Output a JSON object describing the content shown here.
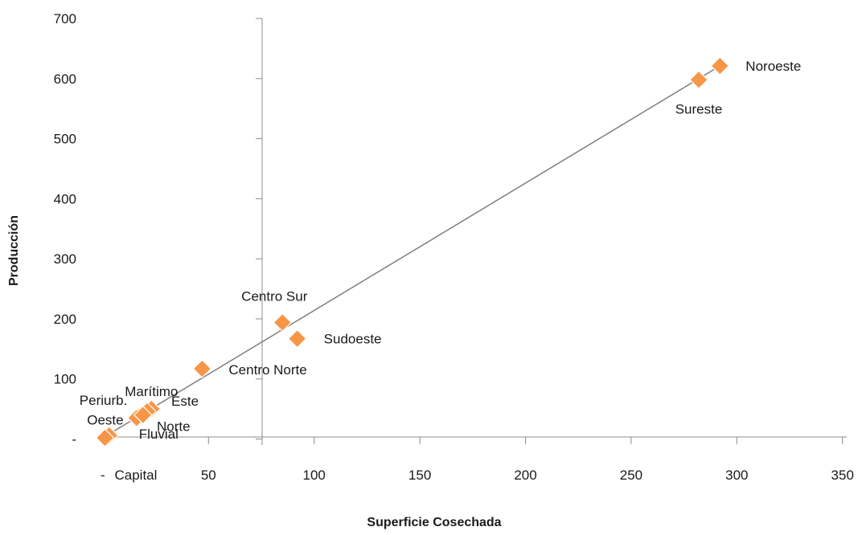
{
  "chart_data": {
    "type": "scatter",
    "title": "",
    "xlabel": "Superficie Cosechada",
    "ylabel": "Producción",
    "xlim": [
      -3,
      352
    ],
    "ylim": [
      -10,
      700
    ],
    "x_ticks": [
      {
        "value": 0,
        "label": "-"
      },
      {
        "value": 50,
        "label": "50"
      },
      {
        "value": 100,
        "label": "100"
      },
      {
        "value": 150,
        "label": "150"
      },
      {
        "value": 200,
        "label": "200"
      },
      {
        "value": 250,
        "label": "250"
      },
      {
        "value": 300,
        "label": "300"
      },
      {
        "value": 350,
        "label": "350"
      }
    ],
    "y_ticks": [
      {
        "value": 0,
        "label": "-"
      },
      {
        "value": 100,
        "label": "100"
      },
      {
        "value": 200,
        "label": "200"
      },
      {
        "value": 300,
        "label": "300"
      },
      {
        "value": 400,
        "label": "400"
      },
      {
        "value": 500,
        "label": "500"
      },
      {
        "value": 600,
        "label": "600"
      },
      {
        "value": 700,
        "label": "700"
      }
    ],
    "grid": false,
    "legend": "none",
    "marker_color": "#F79646",
    "trendline_color": "#7F7F7F",
    "trendline": {
      "type": "linear",
      "x": [
        0,
        292
      ],
      "y": [
        2,
        621
      ]
    },
    "points": [
      {
        "label": "Noroeste",
        "x": 292,
        "y": 621
      },
      {
        "label": "Sureste",
        "x": 282,
        "y": 598
      },
      {
        "label": "Centro Sur",
        "x": 85,
        "y": 194
      },
      {
        "label": "Sudoeste",
        "x": 92,
        "y": 167
      },
      {
        "label": "Centro Norte",
        "x": 47,
        "y": 117
      },
      {
        "label": "Marítimo",
        "x": 23,
        "y": 50
      },
      {
        "label": "Este",
        "x": 21,
        "y": 46
      },
      {
        "label": "Periurb.",
        "x": 17,
        "y": 37
      },
      {
        "label": "Oeste",
        "x": 16,
        "y": 35
      },
      {
        "label": "Norte",
        "x": 19,
        "y": 40
      },
      {
        "label": "Fluvial",
        "x": 3,
        "y": 6
      },
      {
        "label": "Capital",
        "x": 1,
        "y": 2
      }
    ]
  }
}
